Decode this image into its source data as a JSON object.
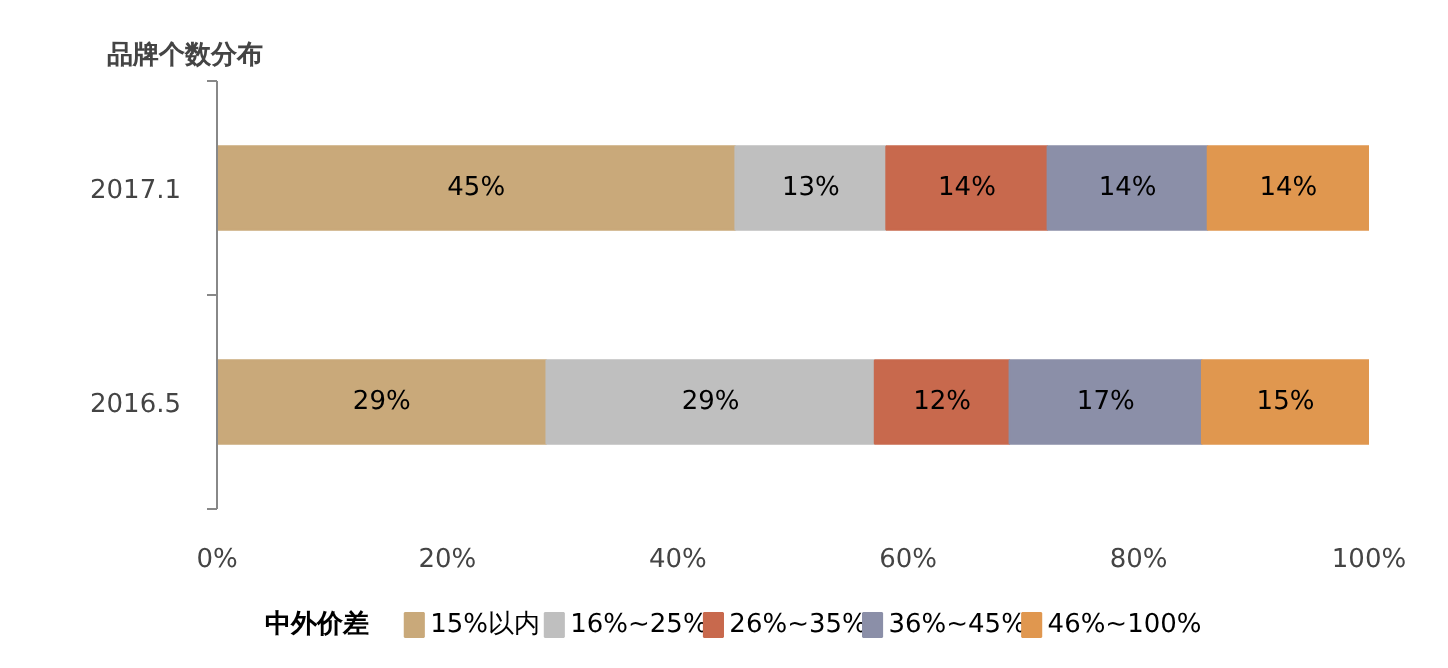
{
  "chart_data": {
    "type": "bar",
    "orientation": "horizontal",
    "stacked": true,
    "title": "品牌个数分布",
    "legend_title": "中外价差",
    "categories": [
      "2017.1",
      "2016.5"
    ],
    "series": [
      {
        "name": "15%以内",
        "color": "#c9a97a",
        "values": [
          45,
          28.6
        ],
        "value_labels": [
          "45%",
          "29%"
        ]
      },
      {
        "name": "16%~25%",
        "color": "#bfbfbf",
        "values": [
          13.1,
          28.5
        ],
        "value_labels": [
          "13%",
          "29%"
        ]
      },
      {
        "name": "26%~35%",
        "color": "#c8694d",
        "values": [
          14,
          11.7
        ],
        "value_labels": [
          "14%",
          "12%"
        ]
      },
      {
        "name": "36%~45%",
        "color": "#8b8fa8",
        "values": [
          13.9,
          16.7
        ],
        "value_labels": [
          "14%",
          "17%"
        ]
      },
      {
        "name": "46%~100%",
        "color": "#e0974f",
        "values": [
          14,
          14.5
        ],
        "value_labels": [
          "14%",
          "15%"
        ]
      }
    ],
    "xlim": [
      0,
      100
    ],
    "xticks": [
      {
        "value": 0,
        "label": "0%"
      },
      {
        "value": 20,
        "label": "20%"
      },
      {
        "value": 40,
        "label": "40%"
      },
      {
        "value": 60,
        "label": "60%"
      },
      {
        "value": 80,
        "label": "80%"
      },
      {
        "value": 100,
        "label": "100%"
      }
    ],
    "grid": false,
    "legend": "bottom"
  }
}
